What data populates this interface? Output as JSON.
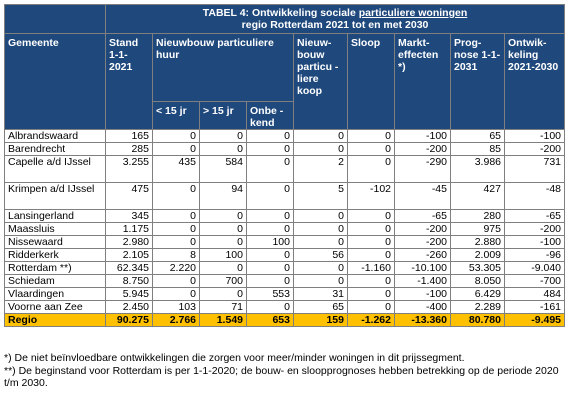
{
  "title": {
    "prefix": "TABEL 4: Ontwikkeling sociale ",
    "underlined": "particuliere woningen",
    "line2": "regio Rotterdam 2021 tot en met 2030"
  },
  "headers": {
    "gemeente": "Gemeente",
    "stand": "Stand 1-1-2021",
    "nieuwbouw_huur": "Nieuwbouw particuliere huur",
    "lt15": "< 15 jr",
    "gt15": "> 15 jr",
    "onbekend": "Onbe -kend",
    "nieuwbouw_koop": "Nieuw-bouw particu -liere koop",
    "sloop": "Sloop",
    "markteffecten": "Markt-effecten *)",
    "prognose": "Prog-nose 1-1-2031",
    "ontwikkeling": "Ontwik-keling 2021-2030"
  },
  "rows": [
    {
      "gemeente": "Albrandswaard",
      "stand": "165",
      "lt15": "0",
      "gt15": "0",
      "onbekend": "0",
      "koop": "0",
      "sloop": "0",
      "markt": "-100",
      "prognose": "65",
      "ontw": "-100"
    },
    {
      "gemeente": "Barendrecht",
      "stand": "285",
      "lt15": "0",
      "gt15": "0",
      "onbekend": "0",
      "koop": "0",
      "sloop": "0",
      "markt": "-200",
      "prognose": "85",
      "ontw": "-200"
    },
    {
      "gemeente": "Capelle a/d IJssel",
      "stand": "3.255",
      "lt15": "435",
      "gt15": "584",
      "onbekend": "0",
      "koop": "2",
      "sloop": "0",
      "markt": "-290",
      "prognose": "3.986",
      "ontw": "731"
    },
    {
      "gemeente": "Krimpen a/d IJssel",
      "stand": "475",
      "lt15": "0",
      "gt15": "94",
      "onbekend": "0",
      "koop": "5",
      "sloop": "-102",
      "markt": "-45",
      "prognose": "427",
      "ontw": "-48"
    },
    {
      "gemeente": "Lansingerland",
      "stand": "345",
      "lt15": "0",
      "gt15": "0",
      "onbekend": "0",
      "koop": "0",
      "sloop": "0",
      "markt": "-65",
      "prognose": "280",
      "ontw": "-65"
    },
    {
      "gemeente": "Maassluis",
      "stand": "1.175",
      "lt15": "0",
      "gt15": "0",
      "onbekend": "0",
      "koop": "0",
      "sloop": "0",
      "markt": "-200",
      "prognose": "975",
      "ontw": "-200"
    },
    {
      "gemeente": "Nissewaard",
      "stand": "2.980",
      "lt15": "0",
      "gt15": "0",
      "onbekend": "100",
      "koop": "0",
      "sloop": "0",
      "markt": "-200",
      "prognose": "2.880",
      "ontw": "-100"
    },
    {
      "gemeente": "Ridderkerk",
      "stand": "2.105",
      "lt15": "8",
      "gt15": "100",
      "onbekend": "0",
      "koop": "56",
      "sloop": "0",
      "markt": "-260",
      "prognose": "2.009",
      "ontw": "-96"
    },
    {
      "gemeente": "Rotterdam **)",
      "stand": "62.345",
      "lt15": "2.220",
      "gt15": "0",
      "onbekend": "0",
      "koop": "0",
      "sloop": "-1.160",
      "markt": "-10.100",
      "prognose": "53.305",
      "ontw": "-9.040"
    },
    {
      "gemeente": "Schiedam",
      "stand": "8.750",
      "lt15": "0",
      "gt15": "700",
      "onbekend": "0",
      "koop": "0",
      "sloop": "0",
      "markt": "-1.400",
      "prognose": "8.050",
      "ontw": "-700"
    },
    {
      "gemeente": "Vlaardingen",
      "stand": "5.945",
      "lt15": "0",
      "gt15": "0",
      "onbekend": "553",
      "koop": "31",
      "sloop": "0",
      "markt": "-100",
      "prognose": "6.429",
      "ontw": "484"
    },
    {
      "gemeente": "Voorne aan Zee",
      "stand": "2.450",
      "lt15": "103",
      "gt15": "71",
      "onbekend": "0",
      "koop": "65",
      "sloop": "0",
      "markt": "-400",
      "prognose": "2.289",
      "ontw": "-161"
    }
  ],
  "total": {
    "gemeente": "Regio",
    "stand": "90.275",
    "lt15": "2.766",
    "gt15": "1.549",
    "onbekend": "653",
    "koop": "159",
    "sloop": "-1.262",
    "markt": "-13.360",
    "prognose": "80.780",
    "ontw": "-9.495"
  },
  "notes": [
    "*) De niet beïnvloedbare ontwikkelingen die zorgen voor meer/minder woningen in dit prijssegment.",
    "**) De beginstand voor Rotterdam is per 1-1-2020; de bouw- en sloopprognoses hebben betrekking op de periode 2020 t/m 2030."
  ],
  "colors": {
    "header_bg": "#1f497d",
    "total_bg": "#ffc000"
  }
}
